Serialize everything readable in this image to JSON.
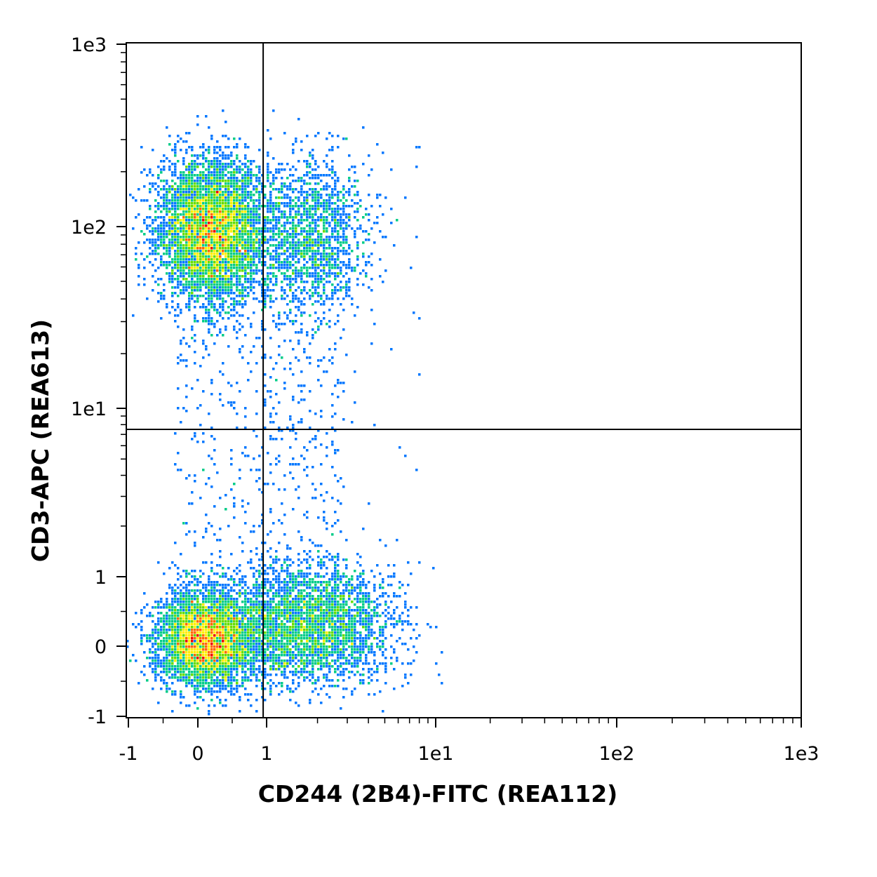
{
  "chart_data": {
    "type": "scatter",
    "style": "flow-cytometry density dot plot with quadrant gate",
    "xlabel": "CD244 (2B4)-FITC (REA112)",
    "ylabel": "CD3-APC (REA613)",
    "x_scale": "biexponential",
    "y_scale": "biexponential",
    "xlim": [
      -1,
      1000
    ],
    "ylim": [
      -1,
      1000
    ],
    "x_ticks": [
      {
        "value": -1,
        "label": "-1"
      },
      {
        "value": 0,
        "label": "0"
      },
      {
        "value": 1,
        "label": "1"
      },
      {
        "value": 10,
        "label": "1e1"
      },
      {
        "value": 100,
        "label": "1e2"
      },
      {
        "value": 1000,
        "label": "1e3"
      }
    ],
    "y_ticks": [
      {
        "value": -1,
        "label": "-1"
      },
      {
        "value": 0,
        "label": "0"
      },
      {
        "value": 1,
        "label": "1"
      },
      {
        "value": 10,
        "label": "1e1"
      },
      {
        "value": 100,
        "label": "1e2"
      },
      {
        "value": 1000,
        "label": "1e3"
      }
    ],
    "gate": {
      "x": 0.95,
      "y": 7.5
    },
    "density_colormap": [
      "#0000ff",
      "#0077ff",
      "#00cc88",
      "#66dd00",
      "#ffee00",
      "#ff6600",
      "#ee0000"
    ],
    "populations": [
      {
        "id": "cd3-pos-cd244-neg",
        "center": {
          "x": 0.2,
          "y": 95
        },
        "relative_density": "high"
      },
      {
        "id": "cd3-pos-cd244-pos",
        "center": {
          "x": 1.8,
          "y": 90
        },
        "relative_density": "low"
      },
      {
        "id": "cd3-neg-cd244-neg",
        "center": {
          "x": 0.1,
          "y": 0.1
        },
        "relative_density": "high"
      },
      {
        "id": "cd3-neg-cd244-pos",
        "center": {
          "x": 1.8,
          "y": 0.3
        },
        "relative_density": "medium"
      }
    ],
    "grid": false,
    "legend": "none"
  }
}
